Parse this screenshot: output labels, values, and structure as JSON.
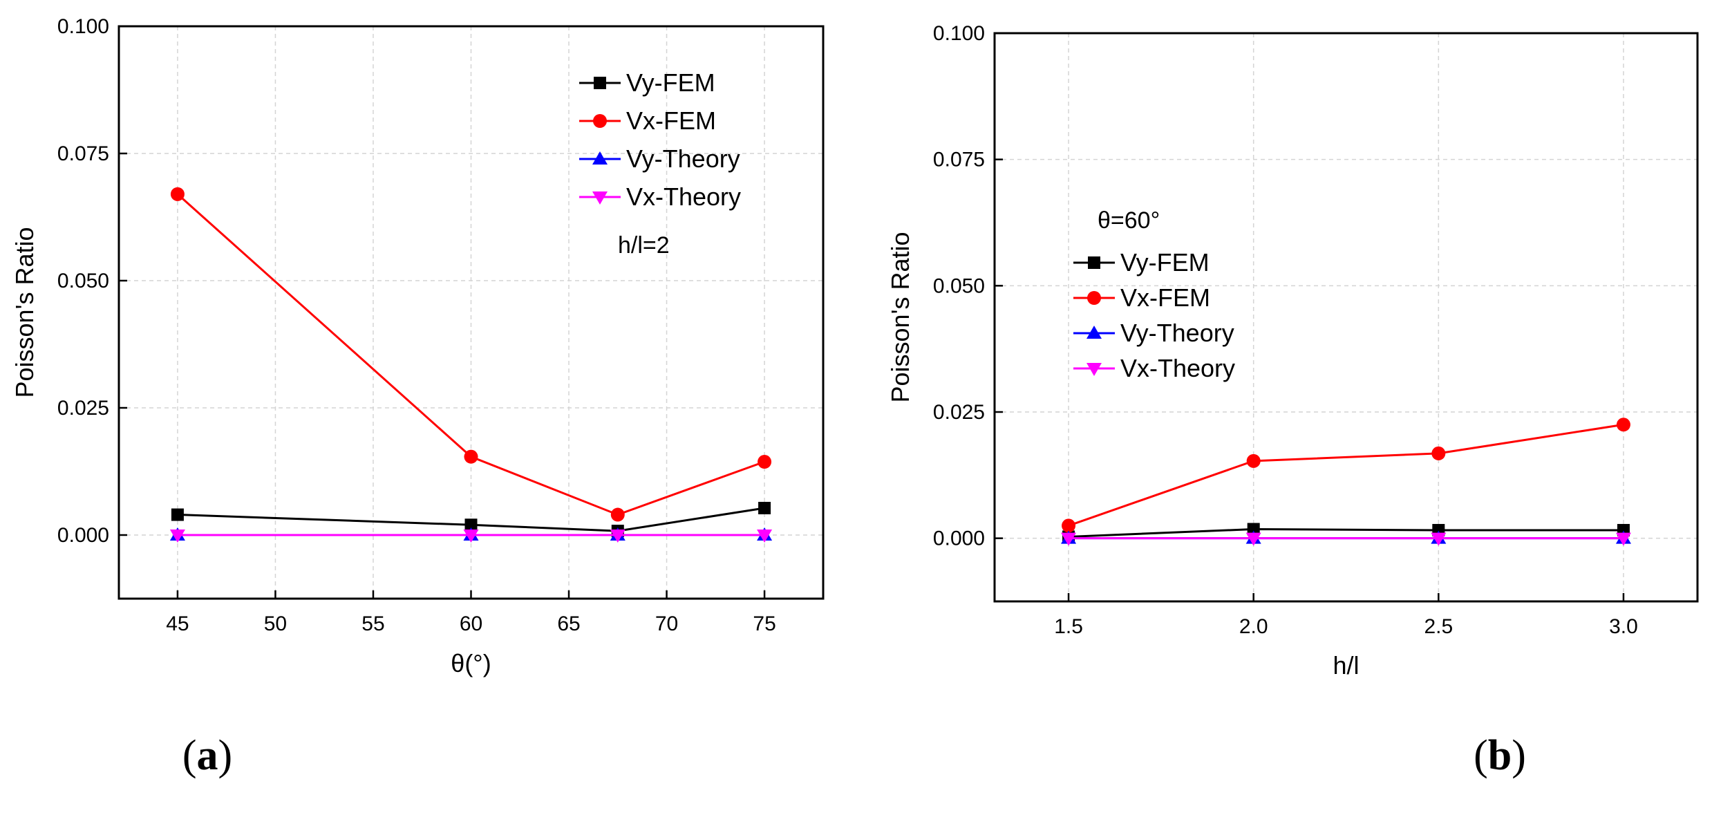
{
  "chart_data": [
    {
      "panel_label": "(a)",
      "panel_letter": "a",
      "type": "line",
      "xlabel": "θ(°)",
      "ylabel": "Poisson's Ratio",
      "xlim": [
        42,
        78
      ],
      "ylim": [
        -0.0125,
        0.1
      ],
      "xticks": [
        45,
        50,
        55,
        60,
        65,
        70,
        75
      ],
      "xtick_labels": [
        "45",
        "50",
        "55",
        "60",
        "65",
        "70",
        "75"
      ],
      "yticks": [
        0,
        0.025,
        0.05,
        0.075,
        0.1
      ],
      "ytick_labels": [
        "0.000",
        "0.025",
        "0.050",
        "0.075",
        "0.100"
      ],
      "grid": true,
      "legend_position": "top-right",
      "annotation": "h/l=2",
      "x": [
        45,
        60,
        67.5,
        75
      ],
      "series": [
        {
          "name": "Vy-FEM",
          "color": "#000000",
          "marker": "square",
          "values": [
            0.004,
            0.002,
            0.0008,
            0.0053
          ]
        },
        {
          "name": "Vx-FEM",
          "color": "#ff0000",
          "marker": "circle",
          "values": [
            0.067,
            0.0154,
            0.004,
            0.0144
          ]
        },
        {
          "name": "Vy-Theory",
          "color": "#0000ff",
          "marker": "triangle-up",
          "values": [
            0,
            0,
            0,
            0
          ]
        },
        {
          "name": "Vx-Theory",
          "color": "#ff00ff",
          "marker": "triangle-down",
          "values": [
            0,
            0,
            0,
            0
          ]
        }
      ]
    },
    {
      "panel_label": "(b)",
      "panel_letter": "b",
      "type": "line",
      "xlabel": "h/l",
      "ylabel": "Poisson's Ratio",
      "xlim": [
        1.3,
        3.2
      ],
      "ylim": [
        -0.0125,
        0.1
      ],
      "xticks": [
        1.5,
        2.0,
        2.5,
        3.0
      ],
      "xtick_labels": [
        "1.5",
        "2.0",
        "2.5",
        "3.0"
      ],
      "yticks": [
        0,
        0.025,
        0.05,
        0.075,
        0.1
      ],
      "ytick_labels": [
        "0.000",
        "0.025",
        "0.050",
        "0.075",
        "0.100"
      ],
      "grid": true,
      "legend_position": "center-left",
      "annotation": "θ=60°",
      "x": [
        1.5,
        2.0,
        2.5,
        3.0
      ],
      "series": [
        {
          "name": "Vy-FEM",
          "color": "#000000",
          "marker": "square",
          "values": [
            0.0003,
            0.0018,
            0.0016,
            0.0016
          ]
        },
        {
          "name": "Vx-FEM",
          "color": "#ff0000",
          "marker": "circle",
          "values": [
            0.0025,
            0.0153,
            0.0168,
            0.0225
          ]
        },
        {
          "name": "Vy-Theory",
          "color": "#0000ff",
          "marker": "triangle-up",
          "values": [
            0,
            0,
            0,
            0
          ]
        },
        {
          "name": "Vx-Theory",
          "color": "#ff00ff",
          "marker": "triangle-down",
          "values": [
            0,
            0,
            0,
            0
          ]
        }
      ]
    }
  ]
}
